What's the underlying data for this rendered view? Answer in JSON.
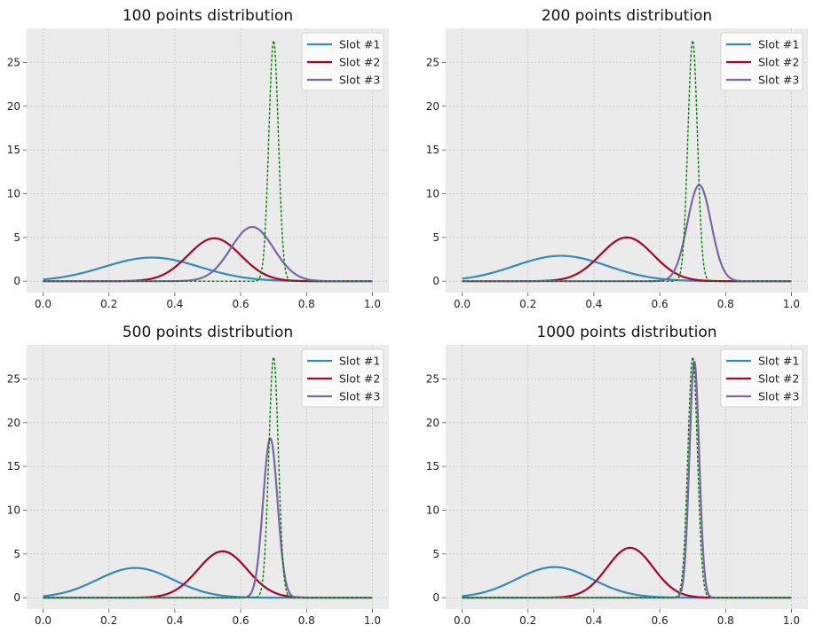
{
  "chart_data": [
    {
      "type": "line",
      "title": "100 points distribution",
      "xlim": [
        -0.05,
        1.05
      ],
      "ylim": [
        -1.3,
        28.9
      ],
      "xticks": [
        "0.0",
        "0.2",
        "0.4",
        "0.6",
        "0.8",
        "1.0"
      ],
      "yticks": [
        "0",
        "5",
        "10",
        "15",
        "20",
        "25"
      ],
      "grid": true,
      "legend_position": "top-right",
      "series": [
        {
          "name": "Slot #1",
          "color": "#348abd",
          "style": "solid",
          "peak_x": 0.33,
          "peak_y": 2.7
        },
        {
          "name": "Slot #2",
          "color": "#a60628",
          "style": "solid",
          "peak_x": 0.52,
          "peak_y": 4.9
        },
        {
          "name": "Slot #3",
          "color": "#7a68a6",
          "style": "solid",
          "peak_x": 0.635,
          "peak_y": 6.2
        },
        {
          "color": "#008000",
          "style": "dashed",
          "peak_x": 0.7,
          "peak_y": 27.5
        }
      ]
    },
    {
      "type": "line",
      "title": "200 points distribution",
      "xlim": [
        -0.05,
        1.05
      ],
      "ylim": [
        -1.3,
        28.9
      ],
      "xticks": [
        "0.0",
        "0.2",
        "0.4",
        "0.6",
        "0.8",
        "1.0"
      ],
      "yticks": [
        "0",
        "5",
        "10",
        "15",
        "20",
        "25"
      ],
      "grid": true,
      "legend_position": "top-right",
      "series": [
        {
          "name": "Slot #1",
          "color": "#348abd",
          "style": "solid",
          "peak_x": 0.3,
          "peak_y": 2.9
        },
        {
          "name": "Slot #2",
          "color": "#a60628",
          "style": "solid",
          "peak_x": 0.5,
          "peak_y": 5.0
        },
        {
          "name": "Slot #3",
          "color": "#7a68a6",
          "style": "solid",
          "peak_x": 0.72,
          "peak_y": 11.0
        },
        {
          "color": "#008000",
          "style": "dashed",
          "peak_x": 0.7,
          "peak_y": 27.5
        }
      ]
    },
    {
      "type": "line",
      "title": "500 points distribution",
      "xlim": [
        -0.05,
        1.05
      ],
      "ylim": [
        -1.3,
        28.9
      ],
      "xticks": [
        "0.0",
        "0.2",
        "0.4",
        "0.6",
        "0.8",
        "1.0"
      ],
      "yticks": [
        "0",
        "5",
        "10",
        "15",
        "20",
        "25"
      ],
      "grid": true,
      "legend_position": "top-right",
      "series": [
        {
          "name": "Slot #1",
          "color": "#348abd",
          "style": "solid",
          "peak_x": 0.28,
          "peak_y": 3.4
        },
        {
          "name": "Slot #2",
          "color": "#a60628",
          "style": "solid",
          "peak_x": 0.545,
          "peak_y": 5.3
        },
        {
          "name": "Slot #3",
          "color": "#7a68a6",
          "style": "solid",
          "peak_x": 0.69,
          "peak_y": 18.2
        },
        {
          "color": "#008000",
          "style": "dashed",
          "peak_x": 0.7,
          "peak_y": 27.5
        }
      ]
    },
    {
      "type": "line",
      "title": "1000 points distribution",
      "xlim": [
        -0.05,
        1.05
      ],
      "ylim": [
        -1.3,
        28.9
      ],
      "xticks": [
        "0.0",
        "0.2",
        "0.4",
        "0.6",
        "0.8",
        "1.0"
      ],
      "yticks": [
        "0",
        "5",
        "10",
        "15",
        "20",
        "25"
      ],
      "grid": true,
      "legend_position": "top-right",
      "series": [
        {
          "name": "Slot #1",
          "color": "#348abd",
          "style": "solid",
          "peak_x": 0.28,
          "peak_y": 3.5
        },
        {
          "name": "Slot #2",
          "color": "#a60628",
          "style": "solid",
          "peak_x": 0.51,
          "peak_y": 5.7
        },
        {
          "name": "Slot #3",
          "color": "#7a68a6",
          "style": "solid",
          "peak_x": 0.705,
          "peak_y": 27.0
        },
        {
          "color": "#008000",
          "style": "dashed",
          "peak_x": 0.7,
          "peak_y": 27.5
        }
      ]
    }
  ]
}
